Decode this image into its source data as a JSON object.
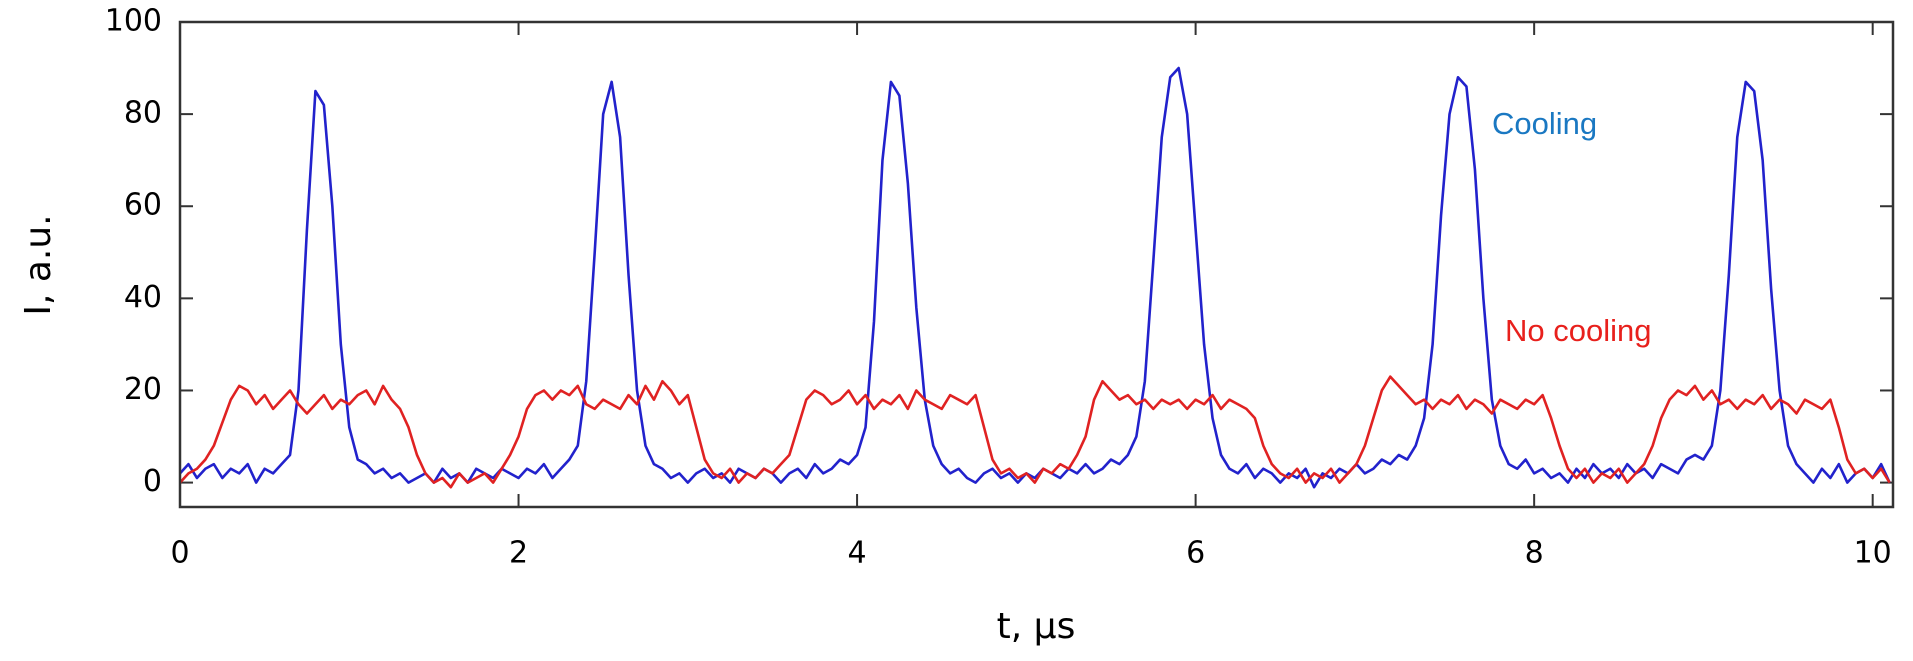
{
  "chart_data": {
    "type": "line",
    "x_label": "t, µs",
    "y_label": "I, a.u.",
    "xlim": [
      0,
      10.12
    ],
    "ylim": [
      -5.3,
      100
    ],
    "xticks": [
      0,
      2,
      4,
      6,
      8,
      10
    ],
    "yticks": [
      0,
      20,
      40,
      60,
      80,
      100
    ],
    "grid": false,
    "x": [
      0,
      0.05,
      0.1,
      0.15,
      0.2,
      0.25,
      0.3,
      0.35,
      0.4,
      0.45,
      0.5,
      0.55,
      0.6,
      0.65,
      0.7,
      0.75,
      0.8,
      0.85,
      0.9,
      0.95,
      1,
      1.05,
      1.1,
      1.15,
      1.2,
      1.25,
      1.3,
      1.35,
      1.4,
      1.45,
      1.5,
      1.55,
      1.6,
      1.65,
      1.7,
      1.75,
      1.8,
      1.85,
      1.9,
      1.95,
      2,
      2.05,
      2.1,
      2.15,
      2.2,
      2.25,
      2.3,
      2.35,
      2.4,
      2.45,
      2.5,
      2.55,
      2.6,
      2.65,
      2.7,
      2.75,
      2.8,
      2.85,
      2.9,
      2.95,
      3,
      3.05,
      3.1,
      3.15,
      3.2,
      3.25,
      3.3,
      3.35,
      3.4,
      3.45,
      3.5,
      3.55,
      3.6,
      3.65,
      3.7,
      3.75,
      3.8,
      3.85,
      3.9,
      3.95,
      4,
      4.05,
      4.1,
      4.15,
      4.2,
      4.25,
      4.3,
      4.35,
      4.4,
      4.45,
      4.5,
      4.55,
      4.6,
      4.65,
      4.7,
      4.75,
      4.8,
      4.85,
      4.9,
      4.95,
      5,
      5.05,
      5.1,
      5.15,
      5.2,
      5.25,
      5.3,
      5.35,
      5.4,
      5.45,
      5.5,
      5.55,
      5.6,
      5.65,
      5.7,
      5.75,
      5.8,
      5.85,
      5.9,
      5.95,
      6,
      6.05,
      6.1,
      6.15,
      6.2,
      6.25,
      6.3,
      6.35,
      6.4,
      6.45,
      6.5,
      6.55,
      6.6,
      6.65,
      6.7,
      6.75,
      6.8,
      6.85,
      6.9,
      6.95,
      7,
      7.05,
      7.1,
      7.15,
      7.2,
      7.25,
      7.3,
      7.35,
      7.4,
      7.45,
      7.5,
      7.55,
      7.6,
      7.65,
      7.7,
      7.75,
      7.8,
      7.85,
      7.9,
      7.95,
      8,
      8.05,
      8.1,
      8.15,
      8.2,
      8.25,
      8.3,
      8.35,
      8.4,
      8.45,
      8.5,
      8.55,
      8.6,
      8.65,
      8.7,
      8.75,
      8.8,
      8.85,
      8.9,
      8.95,
      9,
      9.05,
      9.1,
      9.15,
      9.2,
      9.25,
      9.3,
      9.35,
      9.4,
      9.45,
      9.5,
      9.55,
      9.6,
      9.65,
      9.7,
      9.75,
      9.8,
      9.85,
      9.9,
      9.95,
      10,
      10.05,
      10.1
    ],
    "series": [
      {
        "name": "Cooling",
        "color": "#2222cc",
        "label_color": "#1a78c2",
        "values": [
          2,
          4,
          1,
          3,
          4,
          1,
          3,
          2,
          4,
          0,
          3,
          2,
          4,
          6,
          20,
          55,
          85,
          82,
          60,
          30,
          12,
          5,
          4,
          2,
          3,
          1,
          2,
          0,
          1,
          2,
          0,
          3,
          1,
          2,
          0,
          3,
          2,
          1,
          3,
          2,
          1,
          3,
          2,
          4,
          1,
          3,
          5,
          8,
          22,
          50,
          80,
          87,
          75,
          45,
          20,
          8,
          4,
          3,
          1,
          2,
          0,
          2,
          3,
          1,
          2,
          0,
          3,
          2,
          1,
          3,
          2,
          0,
          2,
          3,
          1,
          4,
          2,
          3,
          5,
          4,
          6,
          12,
          35,
          70,
          87,
          84,
          65,
          38,
          18,
          8,
          4,
          2,
          3,
          1,
          0,
          2,
          3,
          1,
          2,
          0,
          2,
          1,
          3,
          2,
          1,
          3,
          2,
          4,
          2,
          3,
          5,
          4,
          6,
          10,
          22,
          48,
          75,
          88,
          90,
          80,
          55,
          30,
          14,
          6,
          3,
          2,
          4,
          1,
          3,
          2,
          0,
          2,
          1,
          3,
          -1,
          2,
          1,
          3,
          2,
          4,
          2,
          3,
          5,
          4,
          6,
          5,
          8,
          14,
          30,
          58,
          80,
          88,
          86,
          68,
          40,
          18,
          8,
          4,
          3,
          5,
          2,
          3,
          1,
          2,
          0,
          3,
          1,
          4,
          2,
          3,
          1,
          4,
          2,
          3,
          1,
          4,
          3,
          2,
          5,
          6,
          5,
          8,
          20,
          45,
          75,
          87,
          85,
          70,
          42,
          20,
          8,
          4,
          2,
          0,
          3,
          1,
          4,
          0,
          2,
          3,
          1,
          4,
          0
        ]
      },
      {
        "name": "No cooling",
        "color": "#e02222",
        "label_color": "#e8201c",
        "values": [
          0,
          2,
          3,
          5,
          8,
          13,
          18,
          21,
          20,
          17,
          19,
          16,
          18,
          20,
          17,
          15,
          17,
          19,
          16,
          18,
          17,
          19,
          20,
          17,
          21,
          18,
          16,
          12,
          6,
          2,
          0,
          1,
          -1,
          2,
          0,
          1,
          2,
          0,
          3,
          6,
          10,
          16,
          19,
          20,
          18,
          20,
          19,
          21,
          17,
          16,
          18,
          17,
          16,
          19,
          17,
          21,
          18,
          22,
          20,
          17,
          19,
          12,
          5,
          2,
          1,
          3,
          0,
          2,
          1,
          3,
          2,
          4,
          6,
          12,
          18,
          20,
          19,
          17,
          18,
          20,
          17,
          19,
          16,
          18,
          17,
          19,
          16,
          20,
          18,
          17,
          16,
          19,
          18,
          17,
          19,
          12,
          5,
          2,
          3,
          1,
          2,
          0,
          3,
          2,
          4,
          3,
          6,
          10,
          18,
          22,
          20,
          18,
          19,
          17,
          18,
          16,
          18,
          17,
          18,
          16,
          18,
          17,
          19,
          16,
          18,
          17,
          16,
          14,
          8,
          4,
          2,
          1,
          3,
          0,
          2,
          1,
          3,
          0,
          2,
          4,
          8,
          14,
          20,
          23,
          21,
          19,
          17,
          18,
          16,
          18,
          17,
          19,
          16,
          18,
          17,
          15,
          18,
          17,
          16,
          18,
          17,
          19,
          14,
          8,
          3,
          1,
          3,
          0,
          2,
          1,
          3,
          0,
          2,
          4,
          8,
          14,
          18,
          20,
          19,
          21,
          18,
          20,
          17,
          18,
          16,
          18,
          17,
          19,
          16,
          18,
          17,
          15,
          18,
          17,
          16,
          18,
          12,
          5,
          2,
          3,
          1,
          3,
          0
        ]
      }
    ]
  }
}
